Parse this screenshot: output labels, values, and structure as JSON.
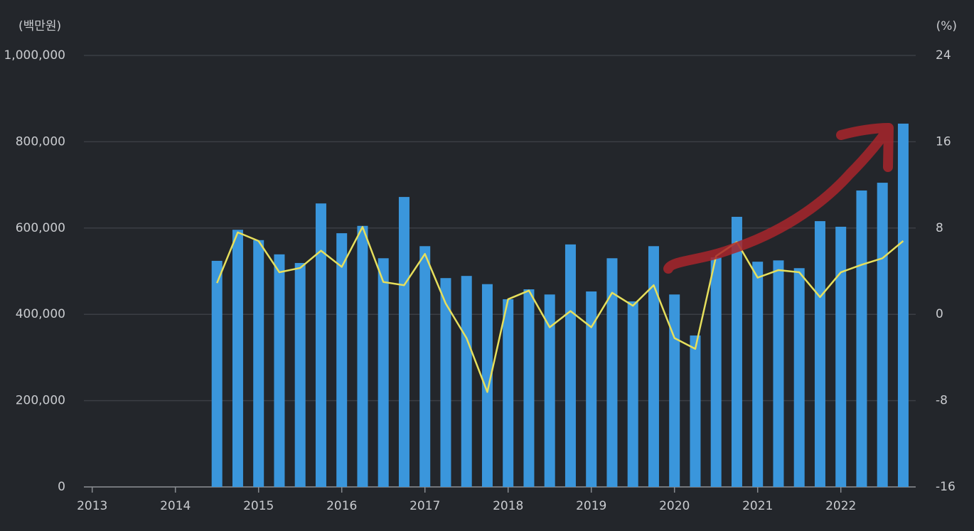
{
  "chart_data": {
    "type": "bar_line",
    "y_unit_label": "(백만원)",
    "y2_unit_label": "(%)",
    "x": [
      2014.5,
      2014.75,
      2015,
      2015.25,
      2015.5,
      2015.75,
      2016,
      2016.25,
      2016.5,
      2016.75,
      2017,
      2017.25,
      2017.5,
      2017.75,
      2018,
      2018.25,
      2018.5,
      2018.75,
      2019,
      2019.25,
      2019.5,
      2019.75,
      2020,
      2020.25,
      2020.5,
      2020.75,
      2021,
      2021.25,
      2021.5,
      2021.75,
      2022,
      2022.25,
      2022.5,
      2022.75
    ],
    "xlim": [
      2012.9,
      2022.9
    ],
    "xticks": [
      2013,
      2014,
      2015,
      2016,
      2017,
      2018,
      2019,
      2020,
      2021,
      2022
    ],
    "series": [
      {
        "type": "bar",
        "color": "#3a96dc",
        "values": [
          524000,
          596000,
          572000,
          539000,
          519000,
          657000,
          588000,
          605000,
          530000,
          672000,
          558000,
          484000,
          489000,
          470000,
          435000,
          458000,
          446000,
          562000,
          453000,
          530000,
          430000,
          558000,
          446000,
          351000,
          532000,
          626000,
          522000,
          525000,
          507000,
          616000,
          603000,
          687000,
          705000,
          842000
        ]
      },
      {
        "type": "line",
        "axis": "y2",
        "color": "#e6df5c",
        "values": [
          2.9,
          7.6,
          6.8,
          3.9,
          4.3,
          5.9,
          4.4,
          8.1,
          3.0,
          2.7,
          5.6,
          1.0,
          -2.2,
          -7.2,
          1.4,
          2.2,
          -1.2,
          0.3,
          -1.2,
          2.0,
          0.8,
          2.7,
          -2.2,
          -3.2,
          5.4,
          6.7,
          3.4,
          4.1,
          3.9,
          1.6,
          3.9,
          4.6,
          5.2,
          6.8
        ]
      }
    ],
    "ylim": [
      0,
      1000000
    ],
    "yticks": [
      0,
      {
        "value": 200000,
        "label": "200,000"
      },
      {
        "value": 400000,
        "label": "400,000"
      },
      {
        "value": 600000,
        "label": "600,000"
      },
      {
        "value": 800000,
        "label": "800,000"
      },
      {
        "value": 1000000,
        "label": "1,000,000"
      }
    ],
    "y2lim": [
      -16,
      24
    ],
    "y2ticks": [
      -16,
      -8,
      0,
      8,
      16,
      24
    ],
    "grid": true
  }
}
